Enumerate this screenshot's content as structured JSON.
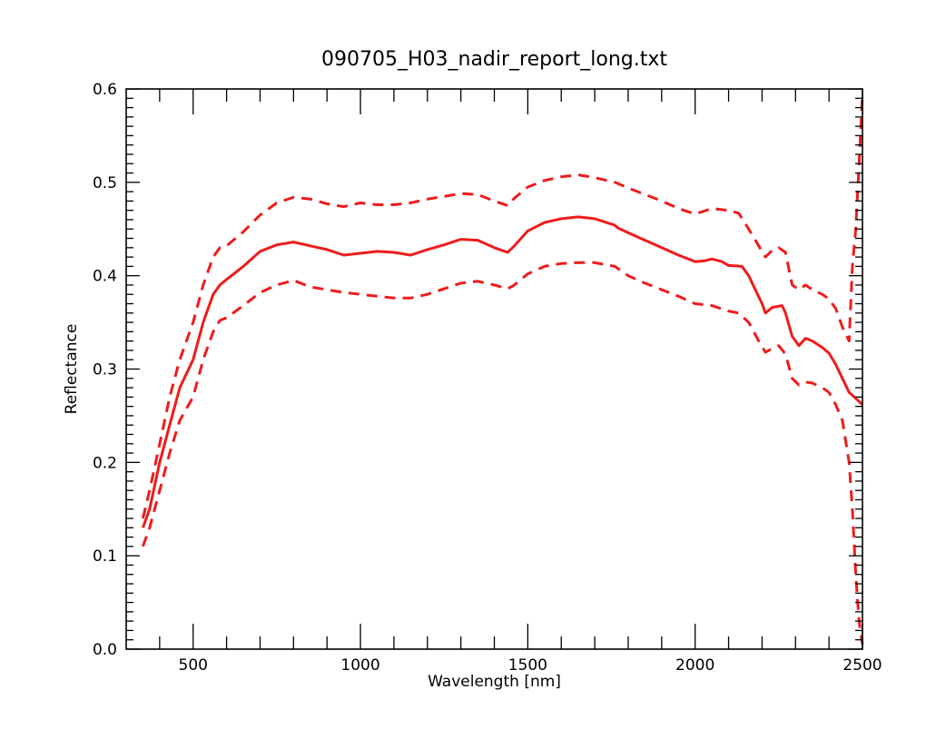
{
  "chart_data": {
    "type": "line",
    "title": "090705_H03_nadir_report_long.txt",
    "xlabel": "Wavelength [nm]",
    "ylabel": "Reflectance",
    "xlim": [
      300,
      2500
    ],
    "ylim": [
      0.0,
      0.6
    ],
    "x_ticks": [
      500,
      1000,
      1500,
      2000,
      2500
    ],
    "x_tick_labels": [
      "500",
      "1000",
      "1500",
      "2000",
      "2500"
    ],
    "y_ticks": [
      0.0,
      0.1,
      0.2,
      0.3,
      0.4,
      0.5,
      0.6
    ],
    "y_tick_labels": [
      "0.0",
      "0.1",
      "0.2",
      "0.3",
      "0.4",
      "0.5",
      "0.6"
    ],
    "grid": false,
    "legend": "none",
    "colors": {
      "series": "#ee1c1c",
      "axes": "#000000"
    },
    "series": [
      {
        "style": "solid",
        "x": [
          350,
          370,
          400,
          430,
          460,
          500,
          530,
          560,
          580,
          600,
          650,
          700,
          750,
          800,
          850,
          900,
          950,
          1000,
          1050,
          1100,
          1150,
          1200,
          1250,
          1300,
          1350,
          1400,
          1440,
          1460,
          1500,
          1550,
          1600,
          1650,
          1700,
          1760,
          1770,
          1800,
          1850,
          1900,
          1950,
          2000,
          2030,
          2050,
          2080,
          2100,
          2140,
          2160,
          2180,
          2200,
          2210,
          2230,
          2260,
          2270,
          2290,
          2310,
          2330,
          2350,
          2380,
          2400,
          2420,
          2440,
          2460,
          2500
        ],
        "y": [
          0.13,
          0.15,
          0.2,
          0.24,
          0.28,
          0.31,
          0.35,
          0.38,
          0.39,
          0.396,
          0.41,
          0.426,
          0.433,
          0.436,
          0.432,
          0.428,
          0.422,
          0.424,
          0.426,
          0.425,
          0.422,
          0.428,
          0.433,
          0.439,
          0.438,
          0.43,
          0.425,
          0.432,
          0.448,
          0.457,
          0.461,
          0.463,
          0.461,
          0.454,
          0.451,
          0.446,
          0.438,
          0.43,
          0.422,
          0.415,
          0.416,
          0.418,
          0.415,
          0.411,
          0.41,
          0.4,
          0.385,
          0.37,
          0.36,
          0.366,
          0.368,
          0.36,
          0.335,
          0.325,
          0.333,
          0.33,
          0.323,
          0.317,
          0.305,
          0.29,
          0.275,
          0.262
        ]
      },
      {
        "style": "dashed",
        "x": [
          350,
          370,
          400,
          430,
          460,
          500,
          530,
          560,
          580,
          600,
          650,
          700,
          750,
          800,
          850,
          900,
          950,
          1000,
          1050,
          1100,
          1150,
          1200,
          1250,
          1300,
          1350,
          1400,
          1440,
          1460,
          1500,
          1550,
          1600,
          1650,
          1700,
          1760,
          1800,
          1850,
          1900,
          1950,
          2000,
          2050,
          2100,
          2130,
          2160,
          2190,
          2210,
          2230,
          2250,
          2270,
          2290,
          2310,
          2330,
          2350,
          2380,
          2400,
          2420,
          2440,
          2460,
          2470,
          2480,
          2490,
          2500
        ],
        "y": [
          0.14,
          0.17,
          0.22,
          0.27,
          0.31,
          0.35,
          0.39,
          0.42,
          0.43,
          0.432,
          0.447,
          0.465,
          0.478,
          0.484,
          0.482,
          0.477,
          0.474,
          0.478,
          0.476,
          0.476,
          0.478,
          0.482,
          0.485,
          0.488,
          0.487,
          0.48,
          0.475,
          0.483,
          0.495,
          0.502,
          0.506,
          0.508,
          0.505,
          0.5,
          0.494,
          0.487,
          0.48,
          0.472,
          0.466,
          0.472,
          0.47,
          0.467,
          0.45,
          0.432,
          0.42,
          0.427,
          0.43,
          0.425,
          0.39,
          0.385,
          0.39,
          0.385,
          0.38,
          0.375,
          0.365,
          0.345,
          0.33,
          0.41,
          0.45,
          0.52,
          0.595
        ]
      },
      {
        "style": "dashed",
        "x": [
          350,
          370,
          400,
          430,
          460,
          500,
          530,
          560,
          580,
          600,
          650,
          700,
          750,
          800,
          850,
          900,
          950,
          1000,
          1050,
          1100,
          1150,
          1200,
          1250,
          1300,
          1350,
          1400,
          1440,
          1460,
          1500,
          1550,
          1600,
          1650,
          1700,
          1760,
          1800,
          1850,
          1900,
          1950,
          2000,
          2050,
          2100,
          2130,
          2160,
          2190,
          2210,
          2230,
          2250,
          2270,
          2290,
          2310,
          2330,
          2350,
          2380,
          2400,
          2420,
          2440,
          2460,
          2470,
          2480,
          2490,
          2500
        ],
        "y": [
          0.11,
          0.13,
          0.17,
          0.21,
          0.245,
          0.27,
          0.31,
          0.34,
          0.352,
          0.355,
          0.368,
          0.382,
          0.39,
          0.395,
          0.388,
          0.385,
          0.382,
          0.38,
          0.378,
          0.376,
          0.376,
          0.38,
          0.386,
          0.392,
          0.394,
          0.39,
          0.386,
          0.39,
          0.402,
          0.41,
          0.413,
          0.414,
          0.414,
          0.41,
          0.4,
          0.392,
          0.385,
          0.378,
          0.37,
          0.368,
          0.362,
          0.36,
          0.35,
          0.33,
          0.318,
          0.322,
          0.325,
          0.316,
          0.29,
          0.283,
          0.286,
          0.285,
          0.28,
          0.275,
          0.262,
          0.245,
          0.2,
          0.15,
          0.08,
          0.03,
          0.005
        ]
      }
    ]
  }
}
